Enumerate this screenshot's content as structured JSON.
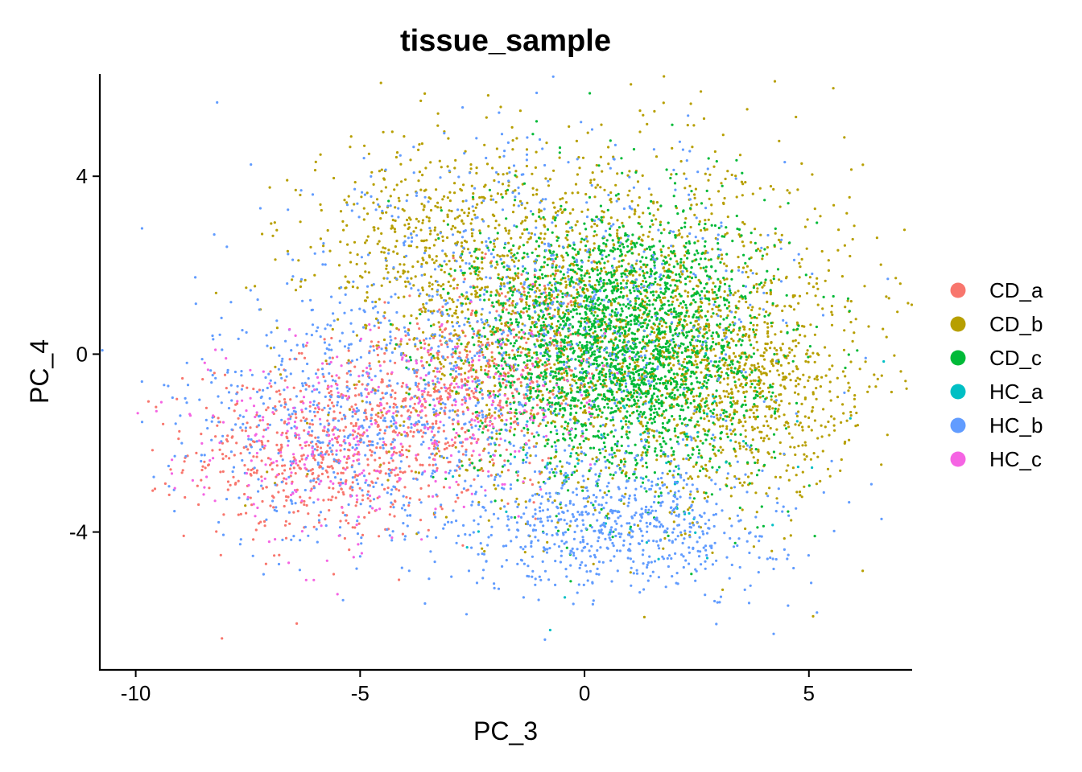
{
  "chart_data": {
    "type": "scatter",
    "title": "tissue_sample",
    "xlabel": "PC_3",
    "ylabel": "PC_4",
    "xlim": [
      -10.8,
      7.3
    ],
    "ylim": [
      -7.1,
      6.3
    ],
    "xticks": [
      -10,
      -5,
      0,
      5
    ],
    "xtick_labels": [
      "-10",
      "-5",
      "0",
      "5"
    ],
    "yticks": [
      -4,
      0,
      4
    ],
    "ytick_labels": [
      "-4",
      "0",
      "4"
    ],
    "grid": false,
    "legend_position": "right",
    "series": [
      {
        "name": "CD_a",
        "color": "#F8766D",
        "clusters": [
          {
            "center": [
              -5.6,
              -2.2
            ],
            "spread": [
              1.6,
              1.0
            ],
            "n": 650
          },
          {
            "center": [
              -3.0,
              -1.0
            ],
            "spread": [
              1.4,
              0.9
            ],
            "n": 350
          },
          {
            "center": [
              -1.5,
              0.3
            ],
            "spread": [
              1.2,
              0.9
            ],
            "n": 220
          }
        ]
      },
      {
        "name": "CD_b",
        "color": "#B79F00",
        "clusters": [
          {
            "center": [
              0.8,
              0.6
            ],
            "spread": [
              2.6,
              1.9
            ],
            "n": 1900
          },
          {
            "center": [
              -3.2,
              2.5
            ],
            "spread": [
              1.5,
              1.2
            ],
            "n": 500
          },
          {
            "center": [
              3.8,
              -1.0
            ],
            "spread": [
              1.1,
              1.1
            ],
            "n": 500
          }
        ]
      },
      {
        "name": "CD_c",
        "color": "#00BA38",
        "clusters": [
          {
            "center": [
              0.8,
              0.2
            ],
            "spread": [
              1.6,
              1.5
            ],
            "n": 2600
          }
        ]
      },
      {
        "name": "HC_a",
        "color": "#00BFC4",
        "clusters": [
          {
            "center": [
              1.0,
              -2.5
            ],
            "spread": [
              2.0,
              1.2
            ],
            "n": 60
          }
        ]
      },
      {
        "name": "HC_b",
        "color": "#619CFF",
        "clusters": [
          {
            "center": [
              0.8,
              -3.8
            ],
            "spread": [
              1.8,
              0.8
            ],
            "n": 700
          },
          {
            "center": [
              -5.2,
              -1.5
            ],
            "spread": [
              2.1,
              1.4
            ],
            "n": 600
          },
          {
            "center": [
              -1.0,
              0.8
            ],
            "spread": [
              2.8,
              2.0
            ],
            "n": 800
          }
        ]
      },
      {
        "name": "HC_c",
        "color": "#F564E3",
        "clusters": [
          {
            "center": [
              -5.5,
              -2.0
            ],
            "spread": [
              1.8,
              1.1
            ],
            "n": 280
          },
          {
            "center": [
              -2.0,
              -0.8
            ],
            "spread": [
              1.3,
              0.9
            ],
            "n": 120
          }
        ]
      }
    ]
  }
}
